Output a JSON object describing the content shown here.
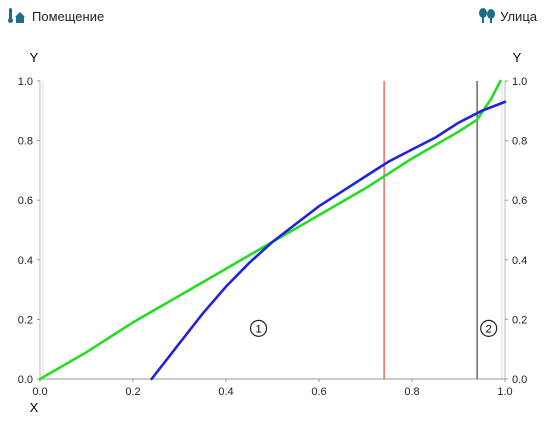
{
  "header": {
    "left": {
      "label": "Помещение",
      "icon": "indoor-thermometer-icon"
    },
    "right": {
      "label": "Улица",
      "icon": "trees-icon"
    }
  },
  "chart_data": {
    "type": "line",
    "xlabel": "X",
    "ylabel_left": "Y",
    "ylabel_right": "Y",
    "xlim": [
      0.0,
      1.0
    ],
    "ylim": [
      0.0,
      1.0
    ],
    "x_ticks": [
      "0.0",
      "0.2",
      "0.4",
      "0.6",
      "0.8",
      "1.0"
    ],
    "y_ticks": [
      "0.0",
      "0.2",
      "0.4",
      "0.6",
      "0.8",
      "1.0"
    ],
    "grid": false,
    "series": [
      {
        "color": "#22dd22",
        "x": [
          0.0,
          0.1,
          0.2,
          0.3,
          0.4,
          0.5,
          0.6,
          0.7,
          0.8,
          0.9,
          0.94,
          0.97,
          0.99
        ],
        "y": [
          0.0,
          0.09,
          0.19,
          0.28,
          0.37,
          0.46,
          0.55,
          0.64,
          0.74,
          0.83,
          0.87,
          0.94,
          1.0
        ]
      },
      {
        "color": "#2222dd",
        "x": [
          0.24,
          0.3,
          0.35,
          0.4,
          0.45,
          0.5,
          0.55,
          0.6,
          0.65,
          0.7,
          0.75,
          0.8,
          0.85,
          0.9,
          0.95,
          1.0
        ],
        "y": [
          0.0,
          0.12,
          0.22,
          0.31,
          0.39,
          0.46,
          0.52,
          0.58,
          0.63,
          0.68,
          0.73,
          0.77,
          0.81,
          0.86,
          0.9,
          0.93
        ]
      }
    ],
    "vlines": [
      {
        "x": 0.74,
        "color": "#ee4444"
      },
      {
        "x": 0.94,
        "color": "#444444"
      }
    ],
    "markers": [
      {
        "label": "1",
        "x": 0.47,
        "y": 0.17
      },
      {
        "label": "2",
        "x": 0.965,
        "y": 0.17
      }
    ]
  }
}
